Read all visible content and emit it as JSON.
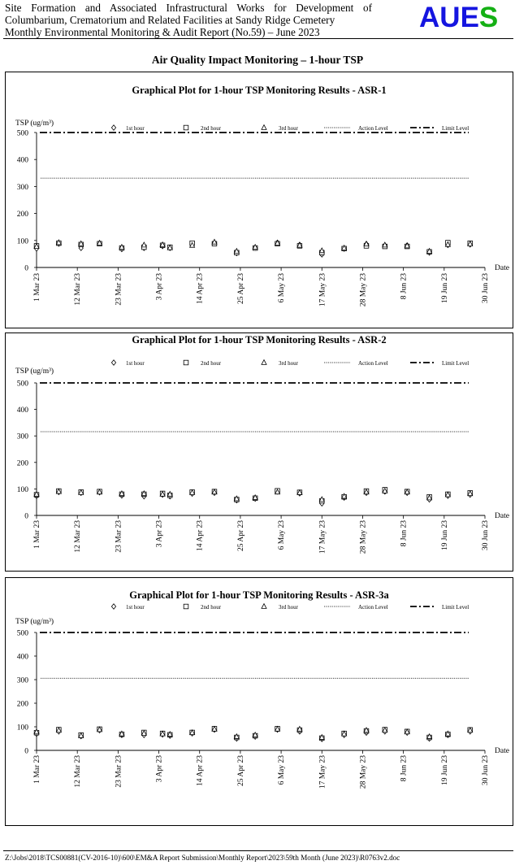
{
  "header": {
    "line1": "Site Formation and Associated Infrastructural Works for Development of",
    "line2": "Columbarium, Crematorium and Related Facilities at Sandy Ridge Cemetery",
    "line3": "Monthly Environmental Monitoring & Audit Report (No.59) – June 2023",
    "logo": "AUES",
    "logo_colors": [
      "#1515e0",
      "#1515e0",
      "#1515e0",
      "#15b015"
    ]
  },
  "page_title": "Air Quality Impact Monitoring – 1-hour TSP",
  "footer": "Z:\\Jobs\\2018\\TCS00881(CV-2016-10)\\600\\EM&A Report Submission\\Monthly Report\\2023\\59th Month (June 2023)\\R0763v2.doc",
  "chart_data": [
    {
      "type": "scatter",
      "title": "Graphical  Plot for 1-hour TSP Monitoring  Results  - ASR-1",
      "ylabel": "TSP (ug/m³)",
      "xlabel": "Date",
      "ylim": [
        0,
        500
      ],
      "yticks": [
        "0",
        "100",
        "200",
        "300",
        "400",
        "500"
      ],
      "xlim": [
        "2023-03-01",
        "2023-06-30"
      ],
      "xticks": [
        "1 Mar 23",
        "12 Mar 23",
        "23 Mar 23",
        "3 Apr 23",
        "14 Apr 23",
        "25 Apr 23",
        "6 May 23",
        "17 May 23",
        "28 May 23",
        "8 Jun 23",
        "19 Jun 23",
        "30 Jun 23"
      ],
      "legend": [
        "1st hour",
        "2nd hour",
        "3rd hour",
        "Action Level",
        "Limit Level"
      ],
      "action_level": 331,
      "limit_level": 500,
      "x": [
        "2023-03-01",
        "2023-03-07",
        "2023-03-13",
        "2023-03-18",
        "2023-03-24",
        "2023-03-30",
        "2023-04-04",
        "2023-04-06",
        "2023-04-12",
        "2023-04-18",
        "2023-04-24",
        "2023-04-29",
        "2023-05-05",
        "2023-05-11",
        "2023-05-17",
        "2023-05-23",
        "2023-05-29",
        "2023-06-03",
        "2023-06-09",
        "2023-06-15",
        "2023-06-20",
        "2023-06-26"
      ],
      "series": [
        {
          "name": "1st hour",
          "marker": "diamond",
          "values": [
            70,
            88,
            72,
            90,
            68,
            72,
            79,
            72,
            85,
            92,
            53,
            73,
            92,
            84,
            48,
            69,
            87,
            82,
            82,
            55,
            83,
            85
          ]
        },
        {
          "name": "2nd hour",
          "marker": "square",
          "values": [
            80,
            90,
            85,
            88,
            72,
            75,
            82,
            75,
            90,
            88,
            55,
            72,
            88,
            80,
            55,
            70,
            80,
            78,
            78,
            58,
            92,
            90
          ]
        },
        {
          "name": "3rd hour",
          "marker": "triangle",
          "values": [
            78,
            92,
            88,
            90,
            75,
            83,
            84,
            73,
            82,
            94,
            60,
            75,
            90,
            82,
            62,
            72,
            87,
            83,
            80,
            60,
            85,
            87
          ]
        }
      ]
    },
    {
      "type": "scatter",
      "title": "Graphical  Plot for 1-hour TSP Monitoring  Results  - ASR-2",
      "ylabel": "TSP (ug/m³)",
      "xlabel": "Date",
      "ylim": [
        0,
        500
      ],
      "yticks": [
        "0",
        "100",
        "200",
        "300",
        "400",
        "500"
      ],
      "xlim": [
        "2023-03-01",
        "2023-06-30"
      ],
      "xticks": [
        "1 Mar 23",
        "12 Mar 23",
        "23 Mar 23",
        "3 Apr 23",
        "14 Apr 23",
        "25 Apr 23",
        "6 May 23",
        "17 May 23",
        "28 May 23",
        "8 Jun 23",
        "19 Jun 23",
        "30 Jun 23"
      ],
      "legend": [
        "1st hour",
        "2nd hour",
        "3rd hour",
        "Action Level",
        "Limit Level"
      ],
      "action_level": 316,
      "limit_level": 500,
      "x": [
        "2023-03-01",
        "2023-03-07",
        "2023-03-13",
        "2023-03-18",
        "2023-03-24",
        "2023-03-30",
        "2023-04-04",
        "2023-04-06",
        "2023-04-12",
        "2023-04-18",
        "2023-04-24",
        "2023-04-29",
        "2023-05-05",
        "2023-05-11",
        "2023-05-17",
        "2023-05-23",
        "2023-05-29",
        "2023-06-03",
        "2023-06-09",
        "2023-06-15",
        "2023-06-20",
        "2023-06-26"
      ],
      "series": [
        {
          "name": "1st hour",
          "marker": "diamond",
          "values": [
            73,
            88,
            85,
            87,
            75,
            72,
            78,
            72,
            82,
            85,
            57,
            63,
            90,
            83,
            45,
            67,
            85,
            90,
            85,
            60,
            74,
            78
          ]
        },
        {
          "name": "2nd hour",
          "marker": "square",
          "values": [
            78,
            92,
            88,
            90,
            80,
            80,
            83,
            76,
            88,
            90,
            60,
            65,
            93,
            87,
            55,
            70,
            92,
            97,
            90,
            70,
            80,
            85
          ]
        },
        {
          "name": "3rd hour",
          "marker": "triangle",
          "values": [
            80,
            90,
            86,
            88,
            82,
            82,
            80,
            80,
            86,
            88,
            63,
            67,
            88,
            86,
            60,
            72,
            88,
            92,
            88,
            66,
            78,
            82
          ]
        }
      ]
    },
    {
      "type": "scatter",
      "title": "Graphical  Plot for 1-hour TSP Monitoring  Results  - ASR-3a",
      "ylabel": "TSP (ug/m³)",
      "xlabel": "Date",
      "ylim": [
        0,
        500
      ],
      "yticks": [
        "0",
        "100",
        "200",
        "300",
        "400",
        "500"
      ],
      "xlim": [
        "2023-03-01",
        "2023-06-30"
      ],
      "xticks": [
        "1 Mar 23",
        "12 Mar 23",
        "23 Mar 23",
        "3 Apr 23",
        "14 Apr 23",
        "25 Apr 23",
        "6 May 23",
        "17 May 23",
        "28 May 23",
        "8 Jun 23",
        "19 Jun 23",
        "30 Jun 23"
      ],
      "legend": [
        "1st hour",
        "2nd hour",
        "3rd hour",
        "Action Level",
        "Limit Level"
      ],
      "action_level": 306,
      "limit_level": 500,
      "x": [
        "2023-03-01",
        "2023-03-07",
        "2023-03-13",
        "2023-03-18",
        "2023-03-24",
        "2023-03-30",
        "2023-04-04",
        "2023-04-06",
        "2023-04-12",
        "2023-04-18",
        "2023-04-24",
        "2023-04-29",
        "2023-05-05",
        "2023-05-11",
        "2023-05-17",
        "2023-05-23",
        "2023-05-29",
        "2023-06-03",
        "2023-06-09",
        "2023-06-15",
        "2023-06-20",
        "2023-06-26"
      ],
      "series": [
        {
          "name": "1st hour",
          "marker": "diamond",
          "values": [
            70,
            80,
            60,
            85,
            65,
            65,
            67,
            62,
            72,
            88,
            50,
            58,
            88,
            80,
            48,
            65,
            75,
            80,
            75,
            50,
            65,
            80
          ]
        },
        {
          "name": "2nd hour",
          "marker": "square",
          "values": [
            75,
            88,
            65,
            90,
            68,
            76,
            72,
            66,
            76,
            92,
            55,
            62,
            92,
            86,
            52,
            72,
            82,
            88,
            80,
            55,
            68,
            87
          ]
        },
        {
          "name": "3rd hour",
          "marker": "triangle",
          "values": [
            78,
            85,
            62,
            88,
            70,
            72,
            70,
            68,
            75,
            90,
            58,
            65,
            90,
            90,
            55,
            70,
            85,
            85,
            78,
            58,
            70,
            85
          ]
        }
      ]
    }
  ]
}
